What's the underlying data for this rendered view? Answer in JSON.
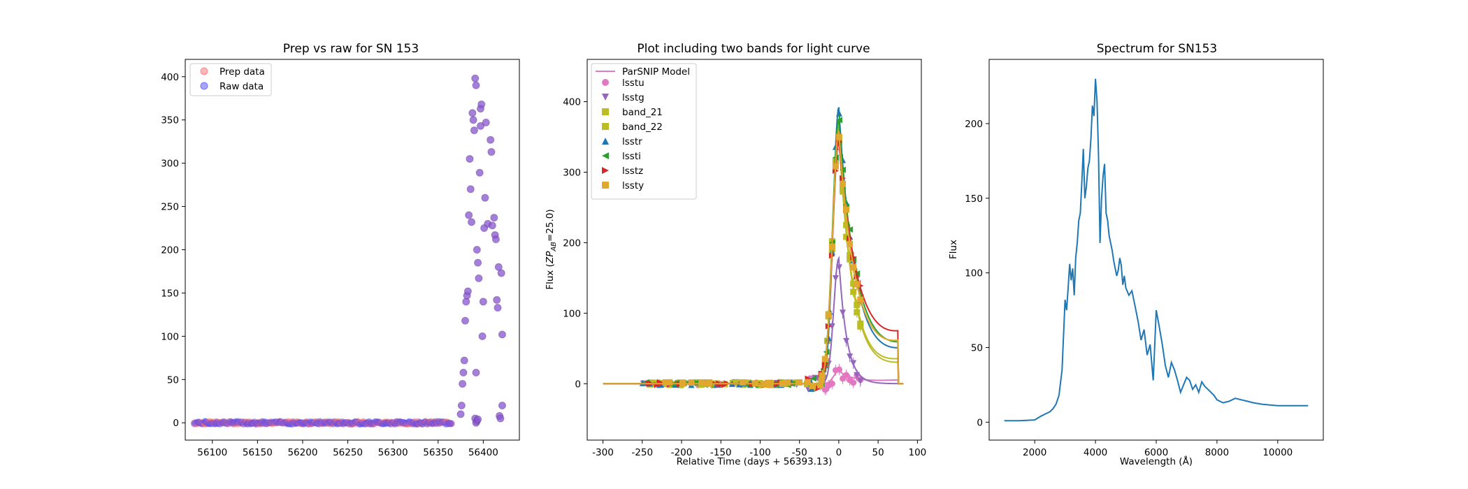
{
  "chart_data": [
    {
      "type": "scatter",
      "title": "Prep vs raw for SN 153",
      "xlabel": "",
      "ylabel": "",
      "xlim": [
        56070,
        56440
      ],
      "ylim": [
        -20,
        420
      ],
      "xticks": [
        56100,
        56150,
        56200,
        56250,
        56300,
        56350,
        56400
      ],
      "yticks": [
        0,
        50,
        100,
        150,
        200,
        250,
        300,
        350,
        400
      ],
      "legend_position": "top-left",
      "series": [
        {
          "name": "Prep data",
          "color": "#ff6b6b",
          "opacity": 0.5,
          "baseline_x_range": [
            56080,
            56365
          ]
        },
        {
          "name": "Raw data",
          "color": "#4b4bff",
          "opacity": 0.5,
          "baseline_x_range": [
            56080,
            56365
          ]
        }
      ],
      "burst_points": [
        [
          56375,
          10
        ],
        [
          56376,
          20
        ],
        [
          56377,
          45
        ],
        [
          56378,
          58
        ],
        [
          56379,
          72
        ],
        [
          56380,
          118
        ],
        [
          56381,
          140
        ],
        [
          56382,
          147
        ],
        [
          56383,
          152
        ],
        [
          56384,
          240
        ],
        [
          56385,
          305
        ],
        [
          56386,
          270
        ],
        [
          56387,
          232
        ],
        [
          56388,
          358
        ],
        [
          56389,
          350
        ],
        [
          56390,
          338
        ],
        [
          56391,
          398
        ],
        [
          56392,
          390
        ],
        [
          56393,
          200
        ],
        [
          56394,
          185
        ],
        [
          56395,
          167
        ],
        [
          56396,
          289
        ],
        [
          56397,
          343
        ],
        [
          56397,
          363
        ],
        [
          56398,
          368
        ],
        [
          56399,
          100
        ],
        [
          56400,
          140
        ],
        [
          56401,
          225
        ],
        [
          56402,
          260
        ],
        [
          56403,
          347
        ],
        [
          56405,
          230
        ],
        [
          56408,
          327
        ],
        [
          56409,
          313
        ],
        [
          56410,
          228
        ],
        [
          56412,
          237
        ],
        [
          56413,
          217
        ],
        [
          56414,
          212
        ],
        [
          56415,
          142
        ],
        [
          56416,
          133
        ],
        [
          56417,
          180
        ],
        [
          56418,
          8
        ],
        [
          56419,
          5
        ],
        [
          56420,
          173
        ],
        [
          56421,
          102
        ],
        [
          56421,
          20
        ],
        [
          56391,
          5
        ],
        [
          56392,
          0
        ],
        [
          56393,
          2
        ],
        [
          56394,
          4
        ],
        [
          56392,
          58
        ]
      ]
    },
    {
      "type": "line",
      "title": "Plot including two bands for light curve",
      "xlabel": "Relative Time (days + 56393.13)",
      "ylabel_prefix": "Flux (",
      "ylabel_mid": "ZP",
      "ylabel_sub": "AB",
      "ylabel_suffix": "=25.0)",
      "xlim": [
        -320,
        105
      ],
      "ylim": [
        -80,
        460
      ],
      "xticks": [
        -300,
        -250,
        -200,
        -150,
        -100,
        -50,
        0,
        50,
        100
      ],
      "yticks": [
        0,
        100,
        200,
        300,
        400
      ],
      "legend_position": "top-left",
      "model_label": "ParSNIP Model",
      "series": [
        {
          "name": "lsstu",
          "color": "#e377c2",
          "marker": "circle",
          "peak": 18
        },
        {
          "name": "lsstg",
          "color": "#9467bd",
          "marker": "triangle-down",
          "peak": 178
        },
        {
          "name": "band_21",
          "color": "#bcbd22",
          "marker": "square",
          "peak": 365
        },
        {
          "name": "band_22",
          "color": "#bcbd22",
          "marker": "square",
          "peak": 355
        },
        {
          "name": "lsstr",
          "color": "#1f77b4",
          "marker": "triangle-up",
          "peak": 392
        },
        {
          "name": "lssti",
          "color": "#2ca02c",
          "marker": "triangle-left",
          "peak": 375
        },
        {
          "name": "lsstz",
          "color": "#d62728",
          "marker": "triangle-right",
          "peak": 345
        },
        {
          "name": "lssty",
          "color": "#e0a82e",
          "marker": "square",
          "peak": 358
        }
      ]
    },
    {
      "type": "line",
      "title": "Spectrum for SN153",
      "xlabel": "Wavelength (Å)",
      "xlabel_unit": "Å",
      "ylabel": "Flux",
      "xlim": [
        500,
        11500
      ],
      "ylim": [
        -12,
        243
      ],
      "xticks": [
        2000,
        4000,
        6000,
        8000,
        10000
      ],
      "yticks": [
        0,
        50,
        100,
        150,
        200
      ],
      "color": "#1f77b4",
      "x": [
        1000,
        1500,
        2000,
        2200,
        2400,
        2500,
        2600,
        2700,
        2800,
        2900,
        3000,
        3050,
        3100,
        3150,
        3200,
        3250,
        3300,
        3350,
        3400,
        3450,
        3500,
        3550,
        3600,
        3650,
        3700,
        3750,
        3800,
        3850,
        3900,
        3950,
        4000,
        4050,
        4100,
        4150,
        4200,
        4250,
        4300,
        4350,
        4400,
        4450,
        4500,
        4550,
        4600,
        4650,
        4700,
        4750,
        4800,
        4850,
        4900,
        4950,
        5000,
        5100,
        5200,
        5300,
        5400,
        5500,
        5600,
        5700,
        5800,
        5900,
        6000,
        6100,
        6200,
        6300,
        6400,
        6500,
        6600,
        6700,
        6800,
        6900,
        7000,
        7100,
        7200,
        7300,
        7400,
        7500,
        7600,
        7700,
        7800,
        7900,
        8000,
        8200,
        8400,
        8600,
        8800,
        9000,
        9200,
        9500,
        10000,
        10500,
        11000
      ],
      "y": [
        1,
        1,
        1.5,
        4,
        6,
        7,
        9,
        12,
        18,
        35,
        82,
        75,
        90,
        106,
        95,
        103,
        85,
        110,
        120,
        135,
        140,
        160,
        183,
        150,
        158,
        170,
        175,
        190,
        212,
        205,
        230,
        215,
        180,
        120,
        150,
        165,
        173,
        140,
        135,
        125,
        120,
        115,
        108,
        103,
        98,
        102,
        110,
        105,
        92,
        98,
        90,
        85,
        88,
        78,
        68,
        55,
        62,
        45,
        52,
        28,
        75,
        64,
        52,
        38,
        30,
        40,
        35,
        28,
        20,
        25,
        30,
        28,
        22,
        25,
        20,
        27,
        24,
        22,
        20,
        18,
        15,
        13,
        14,
        16,
        15,
        14,
        13,
        12,
        11,
        11,
        11
      ]
    }
  ]
}
